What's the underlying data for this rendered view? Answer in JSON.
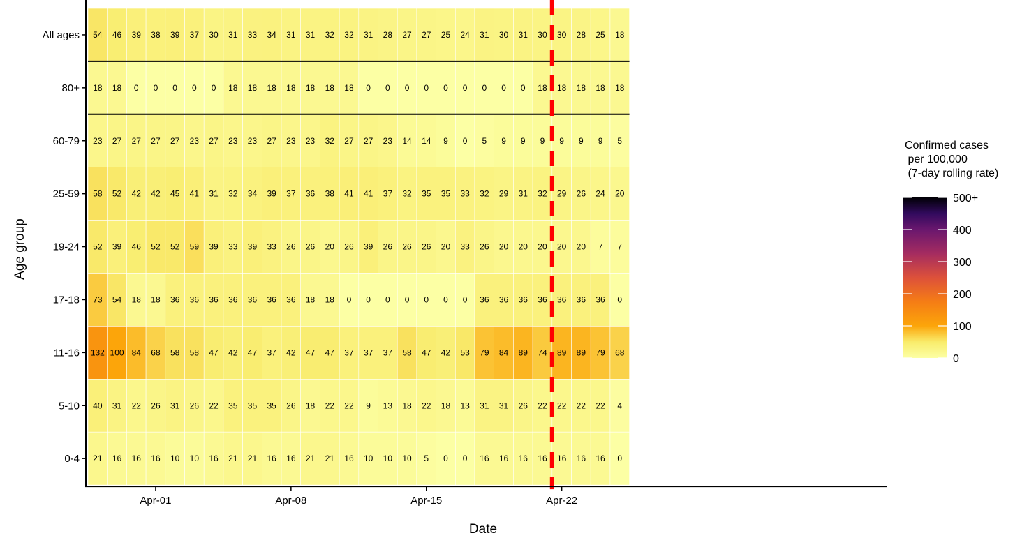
{
  "chart_data": {
    "type": "heatmap",
    "xlabel": "Date",
    "ylabel": "Age group",
    "x_tick_labels": [
      "Apr-01",
      "Apr-08",
      "Apr-15",
      "Apr-22"
    ],
    "x_tick_columns": [
      4,
      11,
      18,
      25
    ],
    "rows": [
      "All ages",
      "80+",
      "60-79",
      "25-59",
      "19-24",
      "17-18",
      "11-16",
      "5-10",
      "0-4"
    ],
    "separator_lines_after_rows": [
      "All ages",
      "80+"
    ],
    "reference_line_after_column": 24,
    "values": [
      [
        54,
        46,
        39,
        38,
        39,
        37,
        30,
        31,
        33,
        34,
        31,
        31,
        32,
        32,
        31,
        28,
        27,
        27,
        25,
        24,
        31,
        30,
        31,
        30,
        30,
        28,
        25,
        18
      ],
      [
        18,
        18,
        0,
        0,
        0,
        0,
        0,
        18,
        18,
        18,
        18,
        18,
        18,
        18,
        0,
        0,
        0,
        0,
        0,
        0,
        0,
        0,
        0,
        18,
        18,
        18,
        18,
        18
      ],
      [
        23,
        27,
        27,
        27,
        27,
        23,
        27,
        23,
        23,
        27,
        23,
        23,
        32,
        27,
        27,
        23,
        14,
        14,
        9,
        0,
        5,
        9,
        9,
        9,
        9,
        9,
        9,
        5
      ],
      [
        58,
        52,
        42,
        42,
        45,
        41,
        31,
        32,
        34,
        39,
        37,
        36,
        38,
        41,
        41,
        37,
        32,
        35,
        35,
        33,
        32,
        29,
        31,
        32,
        29,
        26,
        24,
        20
      ],
      [
        52,
        39,
        46,
        52,
        52,
        59,
        39,
        33,
        39,
        33,
        26,
        26,
        20,
        26,
        39,
        26,
        26,
        26,
        20,
        33,
        26,
        20,
        20,
        20,
        20,
        20,
        7,
        7
      ],
      [
        73,
        54,
        18,
        18,
        36,
        36,
        36,
        36,
        36,
        36,
        36,
        18,
        18,
        0,
        0,
        0,
        0,
        0,
        0,
        0,
        36,
        36,
        36,
        36,
        36,
        36,
        36,
        0
      ],
      [
        132,
        100,
        84,
        68,
        58,
        58,
        47,
        42,
        47,
        37,
        42,
        47,
        47,
        37,
        37,
        37,
        58,
        47,
        42,
        53,
        79,
        84,
        89,
        74,
        89,
        89,
        79,
        68
      ],
      [
        40,
        31,
        22,
        26,
        31,
        26,
        22,
        35,
        35,
        35,
        26,
        18,
        22,
        22,
        9,
        13,
        18,
        22,
        18,
        13,
        31,
        31,
        26,
        22,
        22,
        22,
        22,
        4
      ],
      [
        21,
        16,
        16,
        16,
        10,
        10,
        16,
        21,
        21,
        16,
        16,
        21,
        21,
        16,
        10,
        10,
        10,
        5,
        0,
        0,
        16,
        16,
        16,
        16,
        16,
        16,
        16,
        0
      ]
    ],
    "legend": {
      "title_lines": [
        "Confirmed cases",
        " per 100,000",
        " (7-day rolling rate)"
      ],
      "ticks": [
        {
          "value": 500,
          "label": "500+"
        },
        {
          "value": 400,
          "label": "400"
        },
        {
          "value": 300,
          "label": "300"
        },
        {
          "value": 200,
          "label": "200"
        },
        {
          "value": 100,
          "label": "100"
        },
        {
          "value": 0,
          "label": "0"
        }
      ],
      "range": [
        0,
        500
      ]
    },
    "colors": {
      "reference_line": "#ff0000",
      "separator": "#000000"
    }
  }
}
